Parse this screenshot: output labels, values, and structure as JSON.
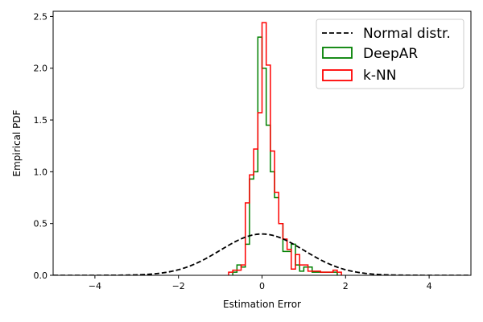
{
  "chart_data": {
    "type": "line",
    "title": "",
    "xlabel": "Estimation Error",
    "ylabel": "Empirical PDF",
    "xlim": [
      -5,
      5
    ],
    "ylim": [
      0,
      2.55
    ],
    "xticks": [
      -4,
      -2,
      0,
      2,
      4
    ],
    "xtick_labels": [
      "−4",
      "−2",
      "0",
      "2",
      "4"
    ],
    "yticks": [
      0,
      0.5,
      1.0,
      1.5,
      2.0,
      2.5
    ],
    "ytick_labels": [
      "0.0",
      "0.5",
      "1.0",
      "1.5",
      "2.0",
      "2.5"
    ],
    "grid": false,
    "legend_position": "top-right",
    "series": [
      {
        "name": "Normal distr.",
        "kind": "normal-pdf",
        "mean": 0,
        "std": 1,
        "color": "#000000",
        "linestyle": "dashed"
      },
      {
        "name": "DeepAR",
        "kind": "step-histogram",
        "color": "#008000",
        "edges": [
          -0.7,
          -0.6,
          -0.5,
          -0.4,
          -0.3,
          -0.2,
          -0.1,
          0.0,
          0.1,
          0.2,
          0.3,
          0.4,
          0.5,
          0.6,
          0.7,
          0.8,
          0.9,
          1.0,
          1.1,
          1.2,
          1.3,
          1.4,
          1.5,
          1.6,
          1.7,
          1.8
        ],
        "values": [
          0.03,
          0.1,
          0.08,
          0.3,
          0.93,
          1.0,
          2.3,
          2.0,
          1.45,
          1.0,
          0.75,
          0.5,
          0.23,
          0.23,
          0.3,
          0.1,
          0.04,
          0.08,
          0.08,
          0.03,
          0.03,
          0.03,
          0.03,
          0.03,
          0.03
        ]
      },
      {
        "name": "k-NN",
        "kind": "step-histogram",
        "color": "#ff0000",
        "edges": [
          -0.8,
          -0.7,
          -0.6,
          -0.5,
          -0.4,
          -0.3,
          -0.2,
          -0.1,
          0.0,
          0.1,
          0.2,
          0.3,
          0.4,
          0.5,
          0.6,
          0.7,
          0.8,
          0.9,
          1.0,
          1.1,
          1.2,
          1.3,
          1.4,
          1.5,
          1.6,
          1.7,
          1.8,
          1.9
        ],
        "values": [
          0.03,
          0.05,
          0.05,
          0.1,
          0.7,
          0.97,
          1.22,
          1.57,
          2.44,
          2.03,
          1.2,
          0.8,
          0.5,
          0.35,
          0.25,
          0.06,
          0.2,
          0.1,
          0.1,
          0.04,
          0.04,
          0.04,
          0.03,
          0.03,
          0.03,
          0.05,
          0.03
        ]
      }
    ]
  }
}
